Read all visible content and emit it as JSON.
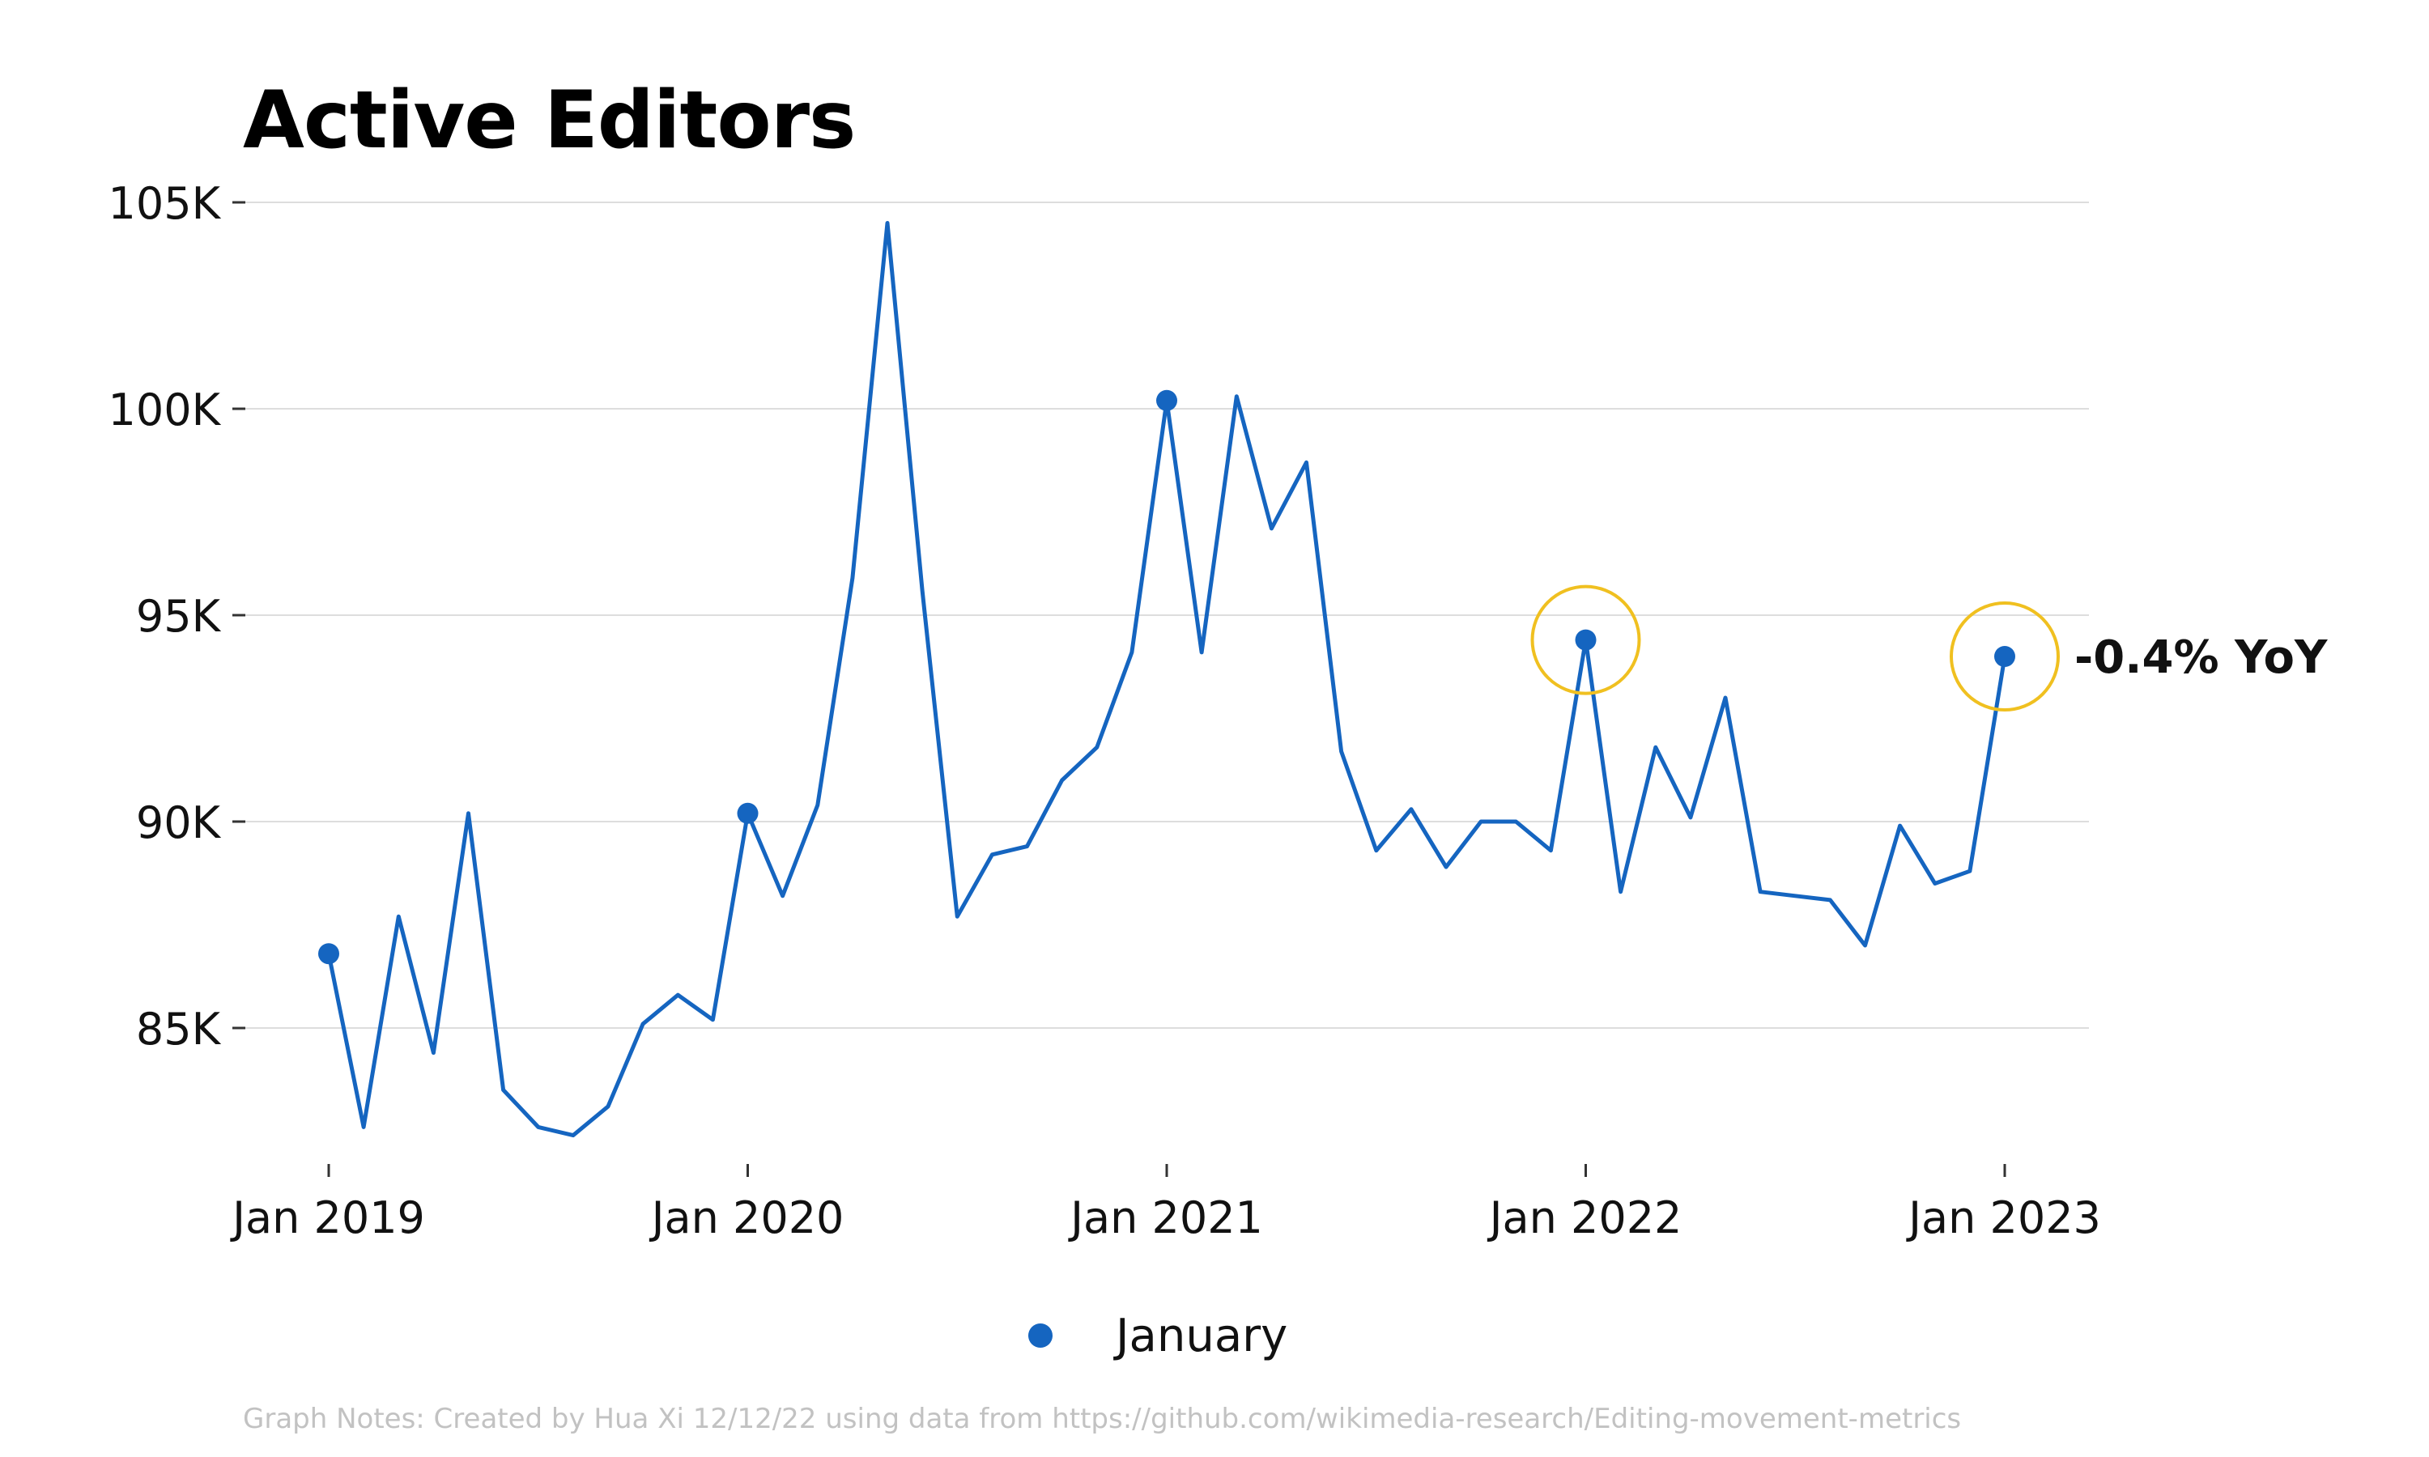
{
  "chart_data": {
    "type": "line",
    "title": "Active Editors",
    "xlabel": "",
    "ylabel": "",
    "ylim": [
      81500,
      105300
    ],
    "yticks": [
      85000,
      90000,
      95000,
      100000,
      105000
    ],
    "ytick_labels": [
      "85K",
      "90K",
      "95K",
      "100K",
      "105K"
    ],
    "xticks": [
      "2019-01",
      "2020-01",
      "2021-01",
      "2022-01",
      "2023-01"
    ],
    "xtick_labels": [
      "Jan 2019",
      "Jan 2020",
      "Jan 2021",
      "Jan 2022",
      "Jan 2023"
    ],
    "grid": "horizontal",
    "legend_position": "bottom-center",
    "series": [
      {
        "type": "line",
        "color": "#1565c0",
        "x": [
          "2019-01",
          "2019-02",
          "2019-03",
          "2019-04",
          "2019-05",
          "2019-06",
          "2019-07",
          "2019-08",
          "2019-09",
          "2019-10",
          "2019-11",
          "2019-12",
          "2020-01",
          "2020-02",
          "2020-03",
          "2020-04",
          "2020-05",
          "2020-06",
          "2020-07",
          "2020-08",
          "2020-09",
          "2020-10",
          "2020-11",
          "2020-12",
          "2021-01",
          "2021-02",
          "2021-03",
          "2021-04",
          "2021-05",
          "2021-06",
          "2021-07",
          "2021-08",
          "2021-09",
          "2021-10",
          "2021-11",
          "2021-12",
          "2022-01",
          "2022-02",
          "2022-03",
          "2022-04",
          "2022-05",
          "2022-06",
          "2022-07",
          "2022-08",
          "2022-09",
          "2022-10",
          "2022-11",
          "2022-12",
          "2023-01"
        ],
        "values": [
          86800,
          82600,
          87700,
          84400,
          90200,
          83500,
          82600,
          82400,
          83100,
          85100,
          85800,
          85200,
          90200,
          88200,
          90400,
          95900,
          104500,
          95600,
          87700,
          89200,
          89400,
          91000,
          91800,
          94100,
          100200,
          94100,
          100300,
          97100,
          98700,
          91700,
          89300,
          90300,
          88900,
          90000,
          90000,
          89300,
          94400,
          88300,
          91800,
          90100,
          93000,
          88300,
          88200,
          88100,
          87000,
          89900,
          88500,
          88800,
          94000
        ]
      },
      {
        "name": "January",
        "type": "scatter",
        "color": "#1565c0",
        "x": [
          "2019-01",
          "2020-01",
          "2021-01",
          "2022-01",
          "2023-01"
        ],
        "values": [
          86800,
          90200,
          100200,
          94400,
          94000
        ]
      }
    ],
    "highlights": [
      {
        "x": "2022-01",
        "y": 94400,
        "color": "#f0c020"
      },
      {
        "x": "2023-01",
        "y": 94000,
        "color": "#f0c020"
      }
    ],
    "annotations": [
      {
        "text": "-0.4% YoY",
        "x": "2023-01",
        "y": 94000
      }
    ]
  },
  "legend": {
    "label": "January",
    "marker_color": "#1565c0"
  },
  "notes": "Graph Notes: Created by Hua Xi 12/12/22 using data from https://github.com/wikimedia-research/Editing-movement-metrics"
}
